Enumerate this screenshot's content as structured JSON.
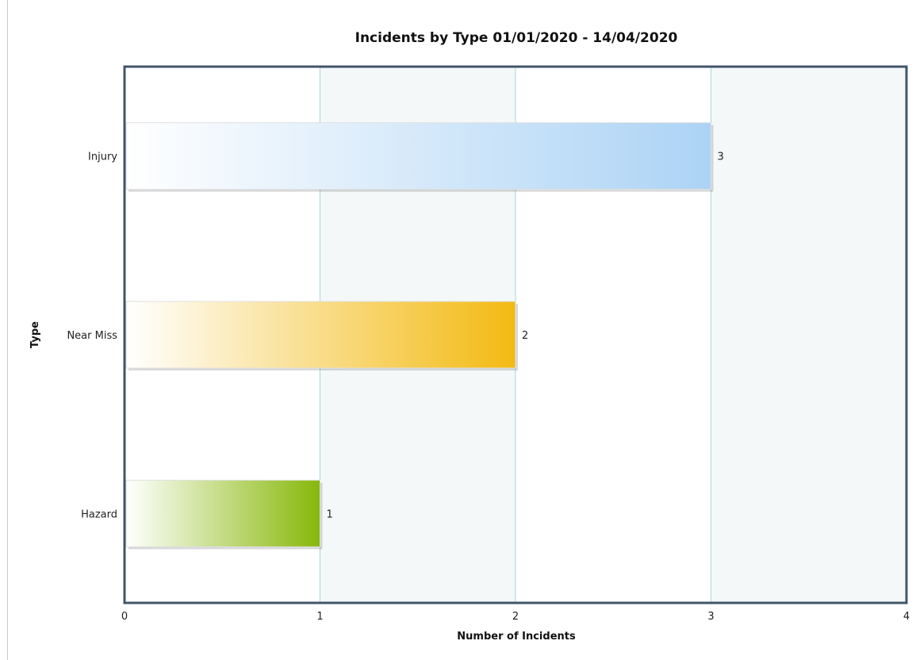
{
  "chart_data": {
    "type": "bar",
    "orientation": "horizontal",
    "title": "Incidents by Type 01/01/2020 - 14/04/2020",
    "xlabel": "Number of Incidents",
    "ylabel": "Type",
    "categories": [
      "Injury",
      "Near Miss",
      "Hazard"
    ],
    "values": [
      3,
      2,
      1
    ],
    "data_labels": [
      "3",
      "2",
      "1"
    ],
    "xlim": [
      0,
      4
    ],
    "xticks": [
      "0",
      "1",
      "2",
      "3",
      "4"
    ],
    "grid": "vertical",
    "legend": "none",
    "colors": {
      "Injury": "#acd3f5",
      "Near Miss": "#f3ba12",
      "Hazard": "#87b80a",
      "plot_border": "#41556b",
      "gridline": "#a9d6dc",
      "band": "#f4f8f8"
    }
  }
}
